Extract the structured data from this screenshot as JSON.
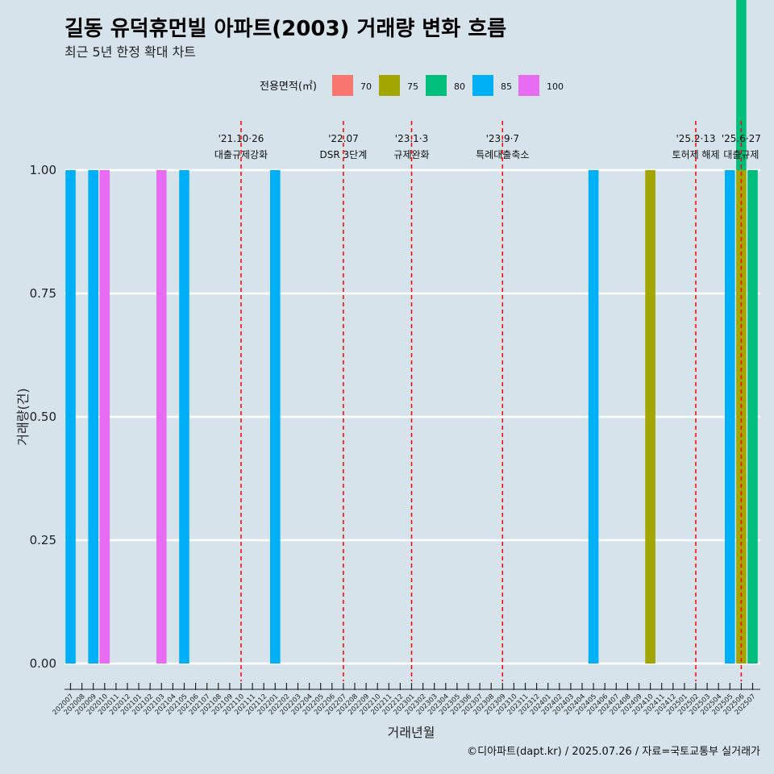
{
  "title": "길동 유덕휴먼빌 아파트(2003) 거래량 변화 흐름",
  "subtitle": "최근 5년 한정 확대 차트",
  "caption": "©디아파트(dapt.kr) / 2025.07.26 / 자료=국토교통부 실거래가",
  "legend_title": "전용면적(㎡)",
  "colors": {
    "70": "#f8766d",
    "75": "#a3a500",
    "80": "#00bf7d",
    "85": "#00b0f6",
    "100": "#e76bf3"
  },
  "chart_data": {
    "type": "bar",
    "xlabel": "거래년월",
    "ylabel": "거래량(건)",
    "ylim": [
      0,
      1
    ],
    "yticks": [
      "0.00",
      "0.25",
      "0.50",
      "0.75",
      "1.00"
    ],
    "grid": true,
    "legend_position": "top",
    "categories": [
      "202007",
      "202008",
      "202009",
      "202010",
      "202011",
      "202012",
      "202101",
      "202102",
      "202103",
      "202104",
      "202105",
      "202106",
      "202107",
      "202108",
      "202109",
      "202110",
      "202111",
      "202112",
      "202201",
      "202202",
      "202203",
      "202204",
      "202205",
      "202206",
      "202207",
      "202208",
      "202209",
      "202210",
      "202211",
      "202212",
      "202301",
      "202302",
      "202303",
      "202304",
      "202305",
      "202306",
      "202307",
      "202308",
      "202309",
      "202310",
      "202311",
      "202312",
      "202401",
      "202402",
      "202403",
      "202404",
      "202405",
      "202406",
      "202407",
      "202408",
      "202409",
      "202410",
      "202411",
      "202412",
      "202501",
      "202502",
      "202503",
      "202504",
      "202505",
      "202506",
      "202507"
    ],
    "series": [
      {
        "name": "70",
        "points": []
      },
      {
        "name": "75",
        "points": [
          {
            "x": "202410",
            "y": 1
          },
          {
            "x": "202506",
            "y": 1
          }
        ]
      },
      {
        "name": "80",
        "points": [
          {
            "x": "202506",
            "y": 1
          },
          {
            "x": "202507",
            "y": 1
          }
        ]
      },
      {
        "name": "85",
        "points": [
          {
            "x": "202007",
            "y": 1
          },
          {
            "x": "202009",
            "y": 1
          },
          {
            "x": "202105",
            "y": 1
          },
          {
            "x": "202201",
            "y": 1
          },
          {
            "x": "202405",
            "y": 1
          },
          {
            "x": "202505",
            "y": 1
          }
        ]
      },
      {
        "name": "100",
        "points": [
          {
            "x": "202010",
            "y": 1
          },
          {
            "x": "202103",
            "y": 1
          }
        ]
      }
    ],
    "annotations": [
      {
        "x": "202110",
        "line1": "'21.10·26",
        "line2": "대출규제강화"
      },
      {
        "x": "202207",
        "line1": "'22.07",
        "line2": "DSR 3단계"
      },
      {
        "x": "202301",
        "line1": "'23.1·3",
        "line2": "규제완화"
      },
      {
        "x": "202309",
        "line1": "'23.9·7",
        "line2": "특례대출축소"
      },
      {
        "x": "202502",
        "line1": "'25.2·13",
        "line2": "토허제 해제"
      },
      {
        "x": "202506",
        "line1": "'25.6·27",
        "line2": "대출규제"
      }
    ]
  }
}
